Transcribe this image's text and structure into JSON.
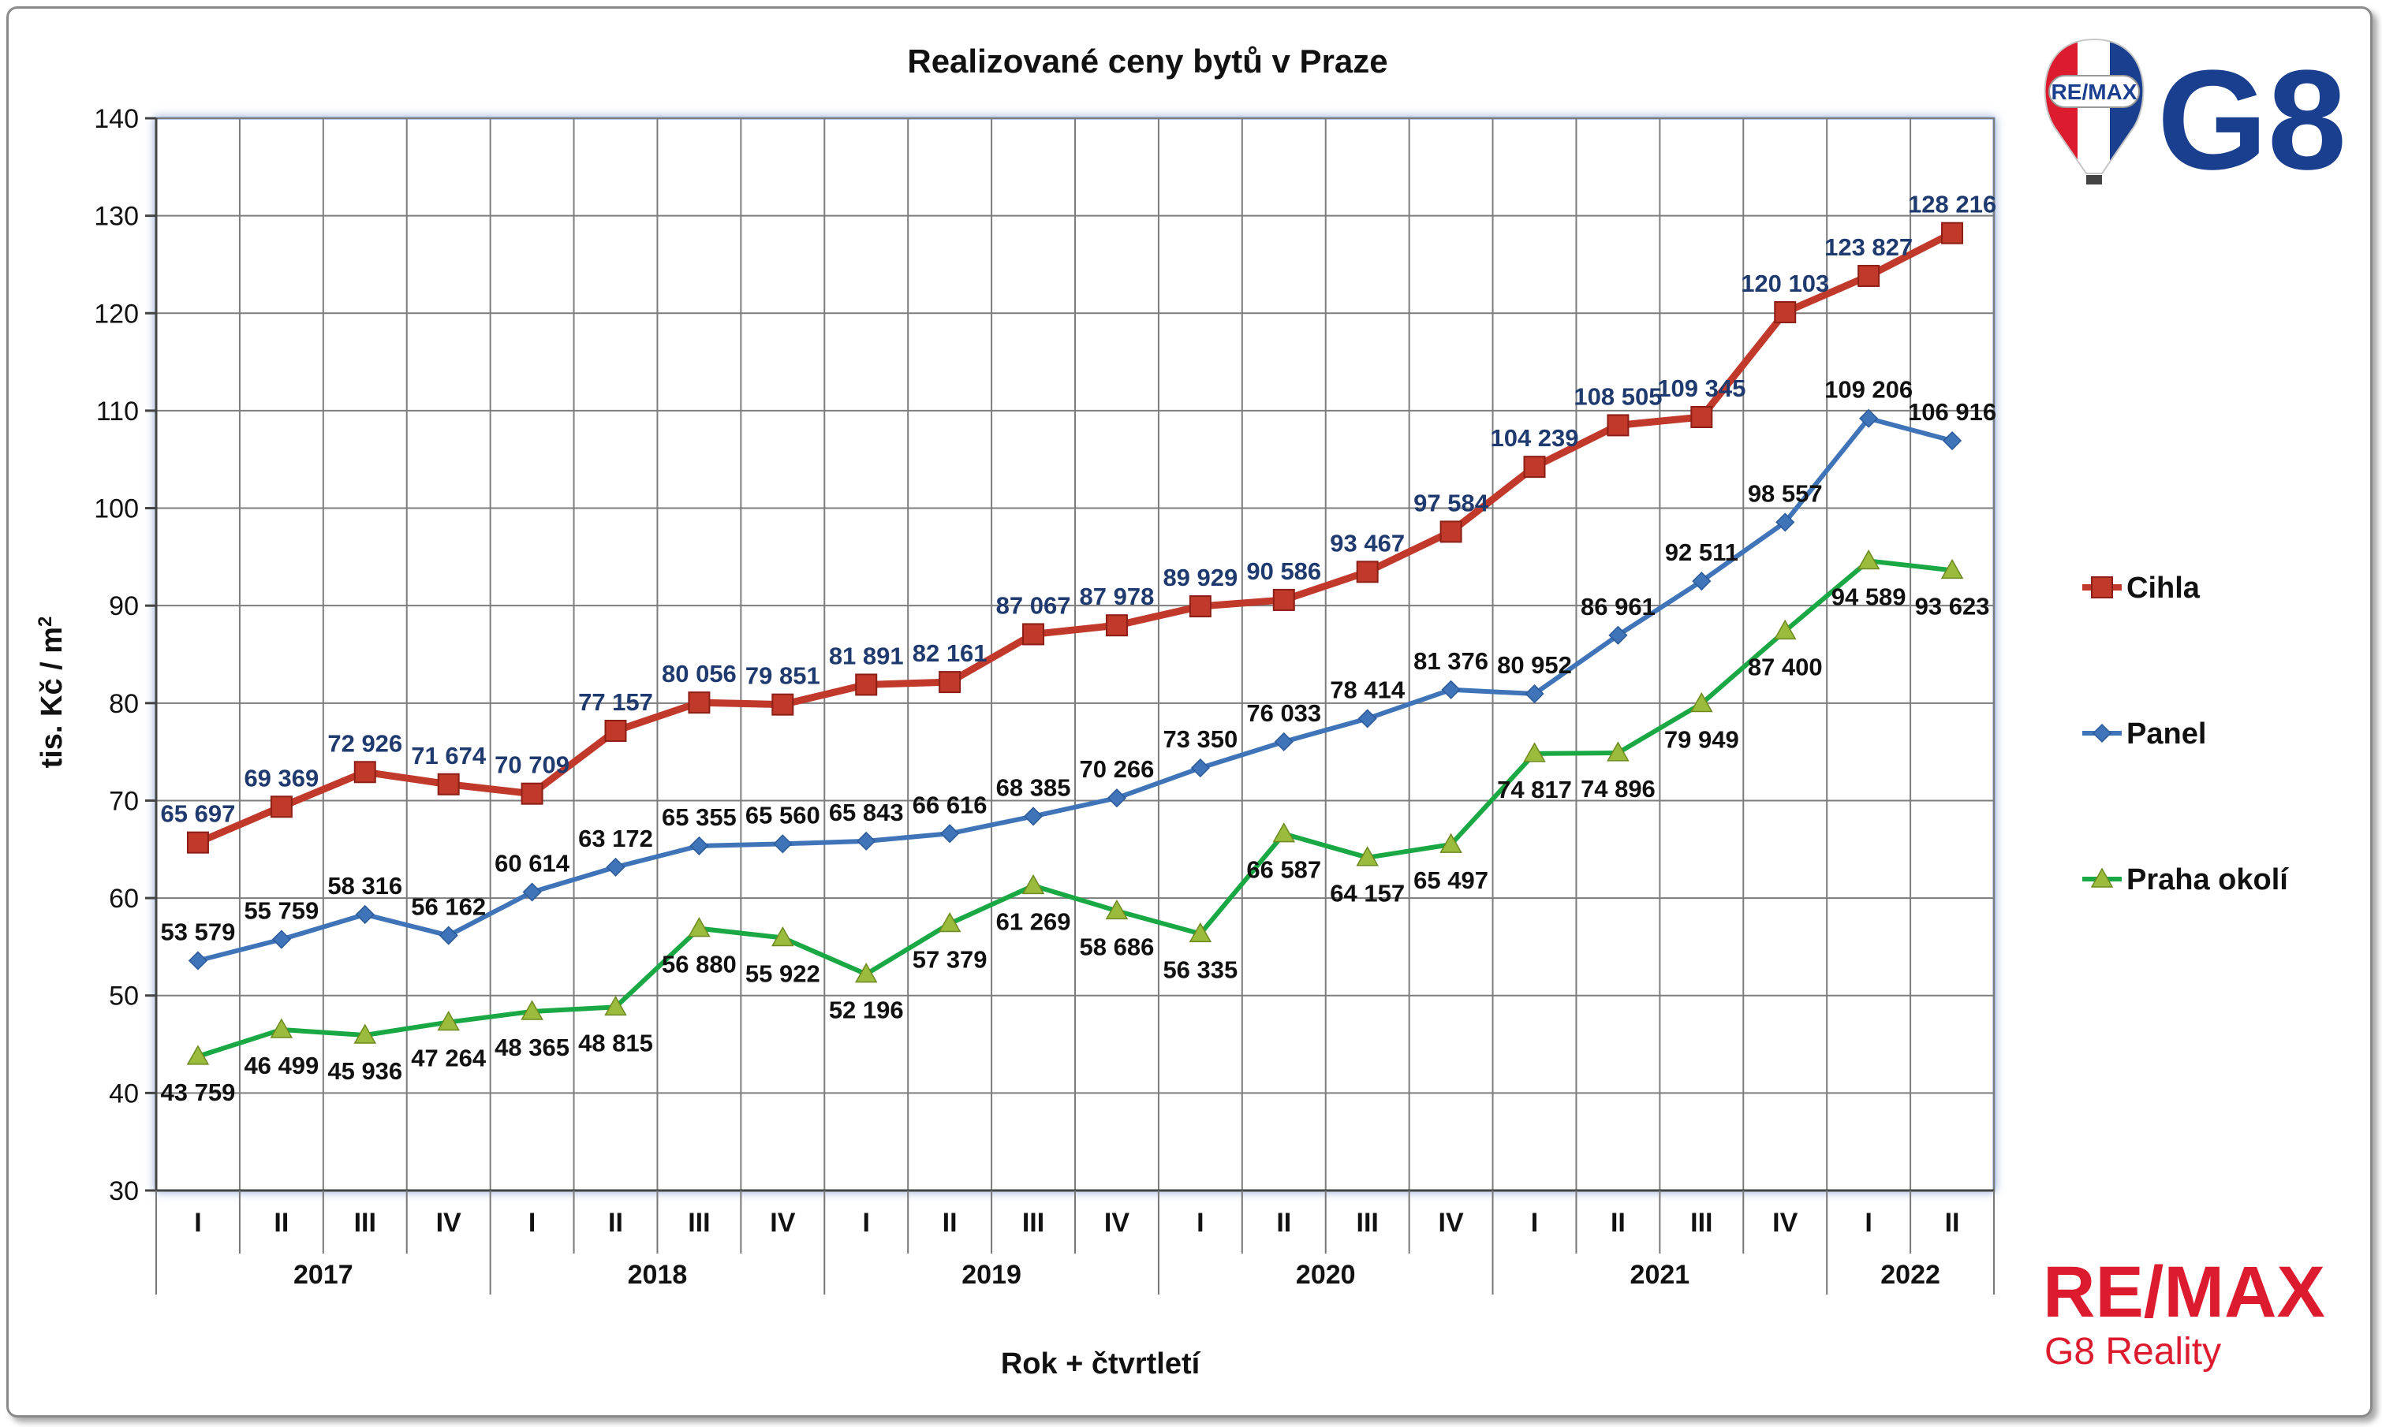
{
  "chart_data": {
    "type": "line",
    "title": "Realizované ceny bytů v Praze",
    "xlabel": "Rok + čtvrtletí",
    "ylabel": "tis. Kč / m",
    "ylabel_sup": "2",
    "ylim": [
      30,
      140
    ],
    "yticks": [
      30,
      40,
      50,
      60,
      70,
      80,
      90,
      100,
      110,
      120,
      130,
      140
    ],
    "grid": true,
    "legend_position": "right",
    "quarters": [
      "I",
      "II",
      "III",
      "IV",
      "I",
      "II",
      "III",
      "IV",
      "I",
      "II",
      "III",
      "IV",
      "I",
      "II",
      "III",
      "IV",
      "I",
      "II",
      "III",
      "IV",
      "I",
      "II"
    ],
    "years": [
      {
        "label": "2017",
        "span": 4
      },
      {
        "label": "2018",
        "span": 4
      },
      {
        "label": "2019",
        "span": 4
      },
      {
        "label": "2020",
        "span": 4
      },
      {
        "label": "2021",
        "span": 4
      },
      {
        "label": "2022",
        "span": 2
      }
    ],
    "series": [
      {
        "name": "Cihla",
        "color": "#c0392b",
        "marker": "square",
        "label_color": "#1f3a6e",
        "values": [
          65.697,
          69.369,
          72.926,
          71.674,
          70.709,
          77.157,
          80.056,
          79.851,
          81.891,
          82.161,
          87.067,
          87.978,
          89.929,
          90.586,
          93.467,
          97.584,
          104.239,
          108.505,
          109.345,
          120.103,
          123.827,
          128.216
        ],
        "labels": [
          "65 697",
          "69 369",
          "72 926",
          "71 674",
          "70 709",
          "77 157",
          "80 056",
          "79 851",
          "81 891",
          "82 161",
          "87 067",
          "87 978",
          "89 929",
          "90 586",
          "93 467",
          "97 584",
          "104 239",
          "108 505",
          "109 345",
          "120 103",
          "123 827",
          "128 216"
        ]
      },
      {
        "name": "Panel",
        "color": "#3f74b8",
        "marker": "diamond",
        "label_color": "#111111",
        "values": [
          53.579,
          55.759,
          58.316,
          56.162,
          60.614,
          63.172,
          65.355,
          65.56,
          65.843,
          66.616,
          68.385,
          70.266,
          73.35,
          76.033,
          78.414,
          81.376,
          80.952,
          86.961,
          92.511,
          98.557,
          109.206,
          106.916
        ],
        "labels": [
          "53 579",
          "55 759",
          "58 316",
          "56 162",
          "60 614",
          "63 172",
          "65 355",
          "65 560",
          "65 843",
          "66 616",
          "68 385",
          "70 266",
          "73 350",
          "76 033",
          "78 414",
          "81 376",
          "80 952",
          "86 961",
          "92 511",
          "98 557",
          "109 206",
          "106 916"
        ]
      },
      {
        "name": "Praha okolí",
        "color": "#1aa845",
        "marker": "triangle",
        "marker_color": "#9bbb3c",
        "label_color": "#111111",
        "values": [
          43.759,
          46.499,
          45.936,
          47.264,
          48.365,
          48.815,
          56.88,
          55.922,
          52.196,
          57.379,
          61.269,
          58.686,
          56.335,
          66.587,
          64.157,
          65.497,
          74.817,
          74.896,
          79.949,
          87.4,
          94.589,
          93.623
        ],
        "labels": [
          "43 759",
          "46 499",
          "45 936",
          "47 264",
          "48 365",
          "48 815",
          "56 880",
          "55 922",
          "52 196",
          "57 379",
          "61 269",
          "58 686",
          "56 335",
          "66 587",
          "64 157",
          "65 497",
          "74 817",
          "74 896",
          "79 949",
          "87 400",
          "94 589",
          "93 623"
        ]
      }
    ]
  },
  "logos": {
    "balloon_text": "RE/MAX",
    "brand_mark": "G8",
    "footer_brand": "RE/MAX",
    "footer_sub": "G8 Reality",
    "brand_red": "#dc1c2e",
    "brand_blue": "#1a3f8f"
  }
}
